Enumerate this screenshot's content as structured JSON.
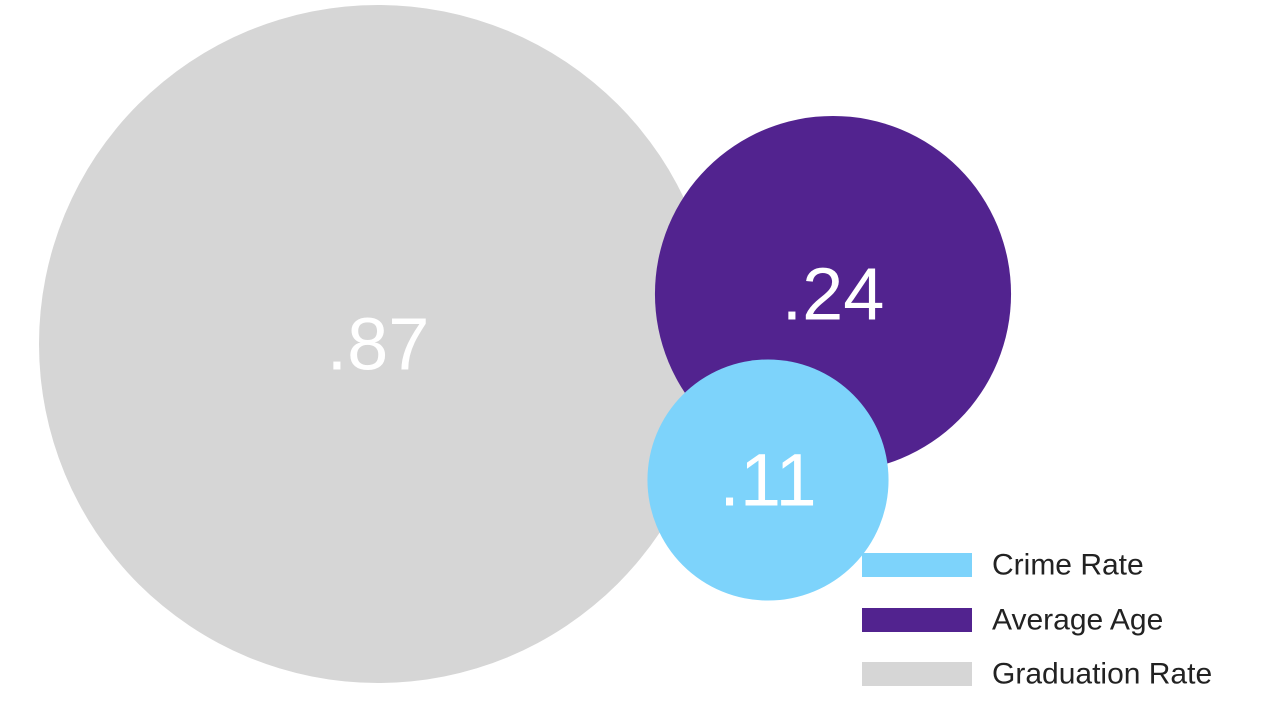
{
  "chart_data": {
    "type": "bubble",
    "title": "",
    "series": [
      {
        "name": "Crime Rate",
        "value": 0.11,
        "label": ".11",
        "color": "#7dd3fb"
      },
      {
        "name": "Average Age",
        "value": 0.24,
        "label": ".24",
        "color": "#52238f"
      },
      {
        "name": "Graduation Rate",
        "value": 0.87,
        "label": ".87",
        "color": "#d6d6d6"
      }
    ],
    "legend": {
      "position": "bottom-right",
      "items": [
        "Crime Rate",
        "Average Age",
        "Graduation Rate"
      ]
    }
  }
}
